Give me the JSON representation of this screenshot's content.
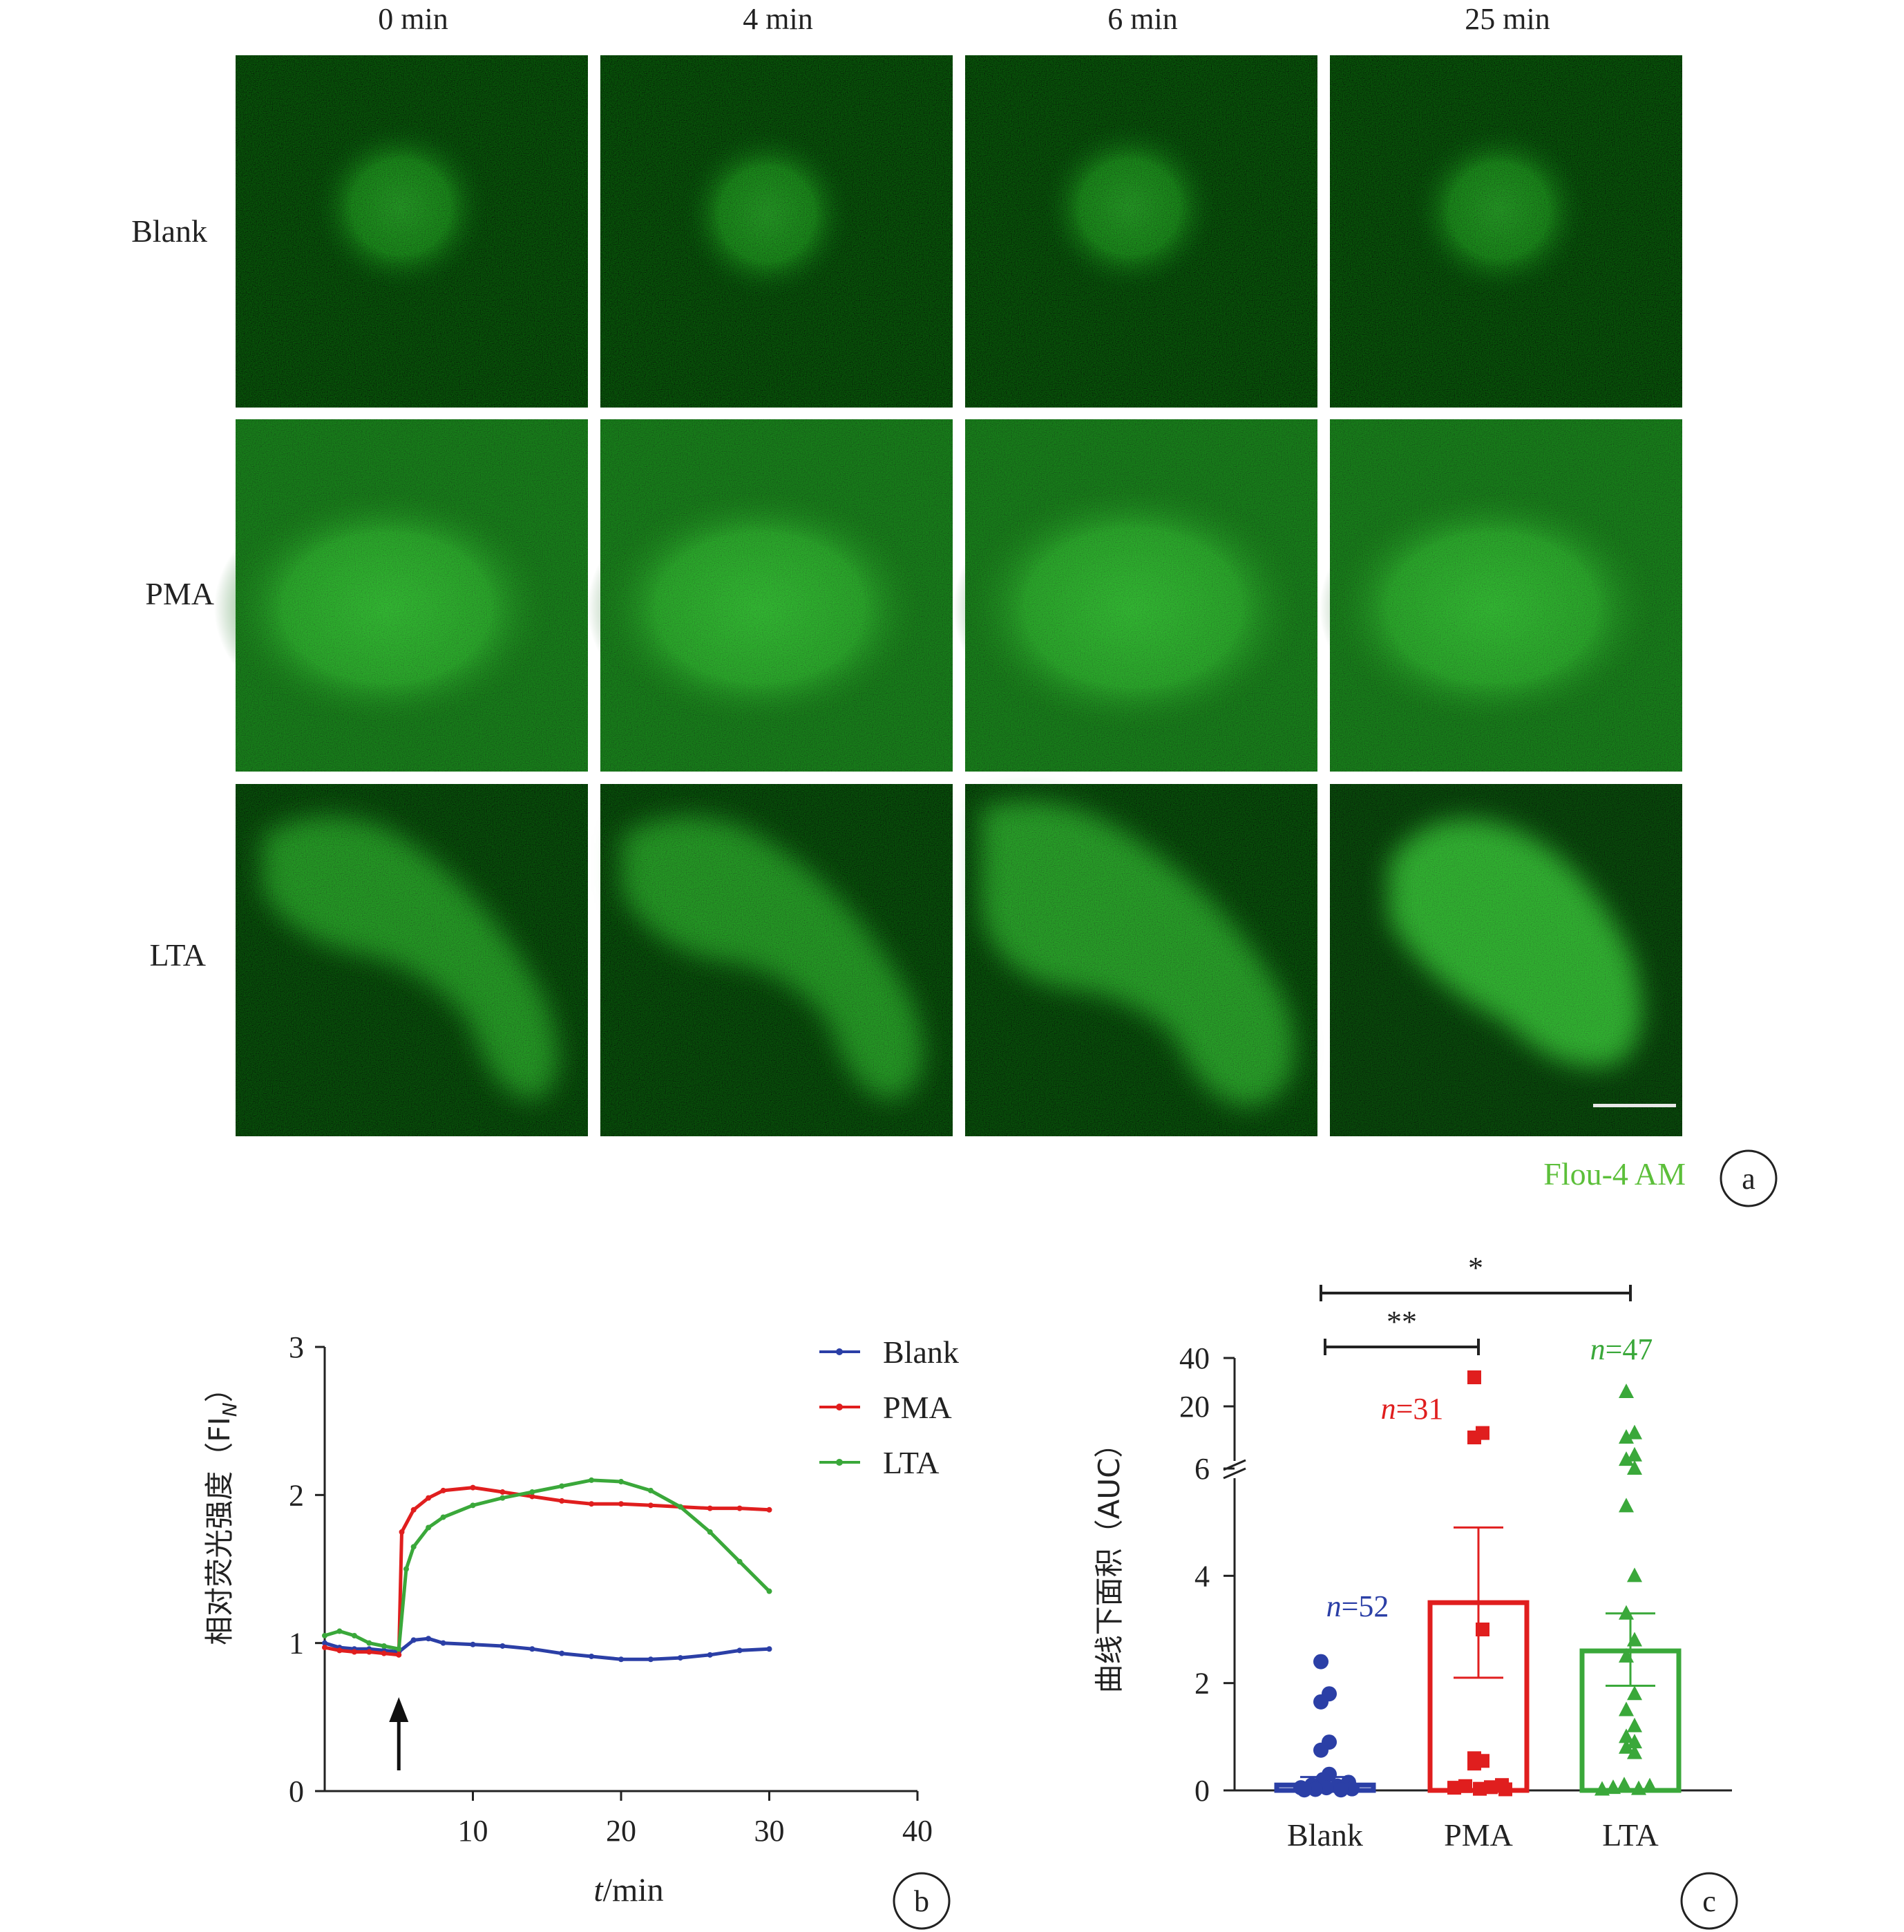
{
  "panel_a": {
    "time_labels": [
      "0 min",
      "4 min",
      "6 min",
      "25 min"
    ],
    "row_labels": [
      "Blank",
      "PMA",
      "LTA"
    ],
    "stain_label": "Flou-4 AM",
    "panel_letter": "a"
  },
  "chart_data": [
    {
      "panel": "b",
      "type": "line",
      "xlabel_italic": "t",
      "xlabel_rest": "/min",
      "ylabel_text": "相对荧光强度（FI",
      "ylabel_sub": "N",
      "ylabel_close": "）",
      "xlim": [
        0,
        40
      ],
      "ylim": [
        0,
        3
      ],
      "xticks": [
        10,
        20,
        30,
        40
      ],
      "yticks": [
        0,
        1,
        2,
        3
      ],
      "legend_position": "top-right",
      "stimulus_arrow_x": 5,
      "series": [
        {
          "name": "Blank",
          "color": "#2b3fa6",
          "x": [
            0,
            1,
            2,
            3,
            4,
            5,
            6,
            7,
            8,
            10,
            12,
            14,
            16,
            18,
            20,
            22,
            24,
            26,
            28,
            30
          ],
          "y": [
            1.0,
            0.97,
            0.96,
            0.96,
            0.95,
            0.94,
            1.02,
            1.03,
            1.0,
            0.99,
            0.98,
            0.96,
            0.93,
            0.91,
            0.89,
            0.89,
            0.9,
            0.92,
            0.95,
            0.96
          ]
        },
        {
          "name": "PMA",
          "color": "#e01e1e",
          "x": [
            0,
            1,
            2,
            3,
            4,
            5,
            5.2,
            6,
            7,
            8,
            10,
            12,
            14,
            16,
            18,
            20,
            22,
            24,
            26,
            28,
            30
          ],
          "y": [
            0.97,
            0.95,
            0.94,
            0.94,
            0.93,
            0.92,
            1.75,
            1.9,
            1.98,
            2.03,
            2.05,
            2.02,
            1.99,
            1.96,
            1.94,
            1.94,
            1.93,
            1.92,
            1.91,
            1.91,
            1.9
          ]
        },
        {
          "name": "LTA",
          "color": "#3aa83a",
          "x": [
            0,
            1,
            2,
            3,
            4,
            5,
            5.5,
            6,
            7,
            8,
            10,
            12,
            14,
            16,
            18,
            20,
            22,
            24,
            26,
            28,
            30
          ],
          "y": [
            1.05,
            1.08,
            1.05,
            1.0,
            0.98,
            0.96,
            1.5,
            1.65,
            1.78,
            1.85,
            1.93,
            1.98,
            2.02,
            2.06,
            2.1,
            2.09,
            2.03,
            1.92,
            1.75,
            1.55,
            1.35
          ]
        }
      ]
    },
    {
      "panel": "c",
      "type": "bar",
      "ylabel": "曲线下面积（AUC）",
      "ylim_lower": [
        0,
        6
      ],
      "ylim_upper": [
        20,
        40
      ],
      "yticks": [
        0,
        2,
        4,
        6,
        20,
        40
      ],
      "categories": [
        "Blank",
        "PMA",
        "LTA"
      ],
      "bar_values": [
        0.1,
        3.5,
        2.6
      ],
      "error_upper": [
        0.25,
        4.9,
        3.3
      ],
      "error_lower": [
        0.0,
        2.1,
        1.95
      ],
      "colors": [
        "#2b3fa6",
        "#e01e1e",
        "#3aa83a"
      ],
      "n_labels": [
        "n=52",
        "n=31",
        "n=47"
      ],
      "n_prefix": "n",
      "n_values": [
        "=52",
        "=31",
        "=47"
      ],
      "points": [
        [
          2.4,
          1.8,
          1.65,
          0.9,
          0.75,
          0.3,
          0.2,
          0.15,
          0.1,
          0.08,
          0.05,
          0.05,
          0.03,
          0.02,
          0.01,
          0.01
        ],
        [
          32,
          14,
          13,
          3.0,
          0.6,
          0.55,
          0.5,
          0.1,
          0.08,
          0.06,
          0.05,
          0.03,
          0.02
        ],
        [
          26,
          14,
          13,
          9,
          8,
          6.0,
          5.3,
          4.0,
          3.3,
          2.8,
          2.5,
          1.8,
          1.5,
          1.2,
          1.0,
          0.9,
          0.8,
          0.7,
          0.1,
          0.08,
          0.05,
          0.03,
          0.02
        ]
      ],
      "significance": [
        {
          "from": "Blank",
          "to": "PMA",
          "label": "**"
        },
        {
          "from": "Blank",
          "to": "LTA",
          "label": "*"
        }
      ]
    }
  ],
  "panel_b_letter": "b",
  "panel_c_letter": "c"
}
